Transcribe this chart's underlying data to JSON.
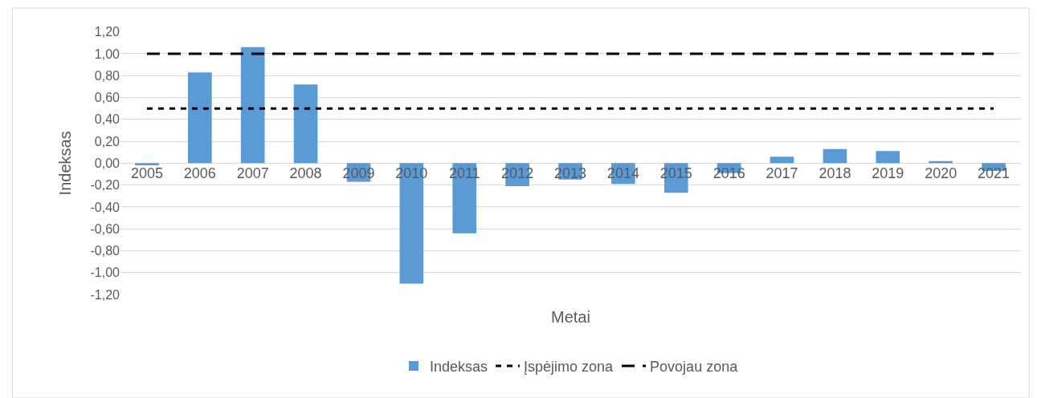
{
  "chart_data": {
    "type": "bar",
    "xlabel": "Metai",
    "ylabel": "Indeksas",
    "categories": [
      "2005",
      "2006",
      "2007",
      "2008",
      "2009",
      "2010",
      "2011",
      "2012",
      "2013",
      "2014",
      "2015",
      "2016",
      "2017",
      "2018",
      "2019",
      "2020",
      "2021"
    ],
    "series": [
      {
        "name": "Indeksas",
        "color": "#5b9bd5",
        "values": [
          -0.02,
          0.83,
          1.06,
          0.72,
          -0.17,
          -1.1,
          -0.64,
          -0.21,
          -0.15,
          -0.19,
          -0.27,
          -0.09,
          0.06,
          0.13,
          0.11,
          0.02,
          -0.07
        ]
      },
      {
        "name": "Įspėjimo zona",
        "type": "line",
        "color": "#000000",
        "line_style": "dotted",
        "values": [
          0.5,
          0.5,
          0.5,
          0.5,
          0.5,
          0.5,
          0.5,
          0.5,
          0.5,
          0.5,
          0.5,
          0.5,
          0.5,
          0.5,
          0.5,
          0.5,
          0.5
        ]
      },
      {
        "name": "Povojau zona",
        "type": "line",
        "color": "#000000",
        "line_style": "dashed",
        "values": [
          1,
          1,
          1,
          1,
          1,
          1,
          1,
          1,
          1,
          1,
          1,
          1,
          1,
          1,
          1,
          1,
          1
        ]
      }
    ],
    "ylim": [
      -1.2,
      1.2
    ],
    "yticks": [
      {
        "value": -1.2,
        "label": "-1,20"
      },
      {
        "value": -1.0,
        "label": "-1,00"
      },
      {
        "value": -0.8,
        "label": "-0,80"
      },
      {
        "value": -0.6,
        "label": "-0,60"
      },
      {
        "value": -0.4,
        "label": "-0,40"
      },
      {
        "value": -0.2,
        "label": "-0,20"
      },
      {
        "value": 0,
        "label": "0,00"
      },
      {
        "value": 0.2,
        "label": "0,20"
      },
      {
        "value": 0.4,
        "label": "0,40"
      },
      {
        "value": 0.6,
        "label": "0,60"
      },
      {
        "value": 0.8,
        "label": "0,80"
      },
      {
        "value": 1.0,
        "label": "1,00"
      },
      {
        "value": 1.2,
        "label": "1,20"
      }
    ],
    "grid": "y",
    "legend": "bottom",
    "marker": "none"
  }
}
